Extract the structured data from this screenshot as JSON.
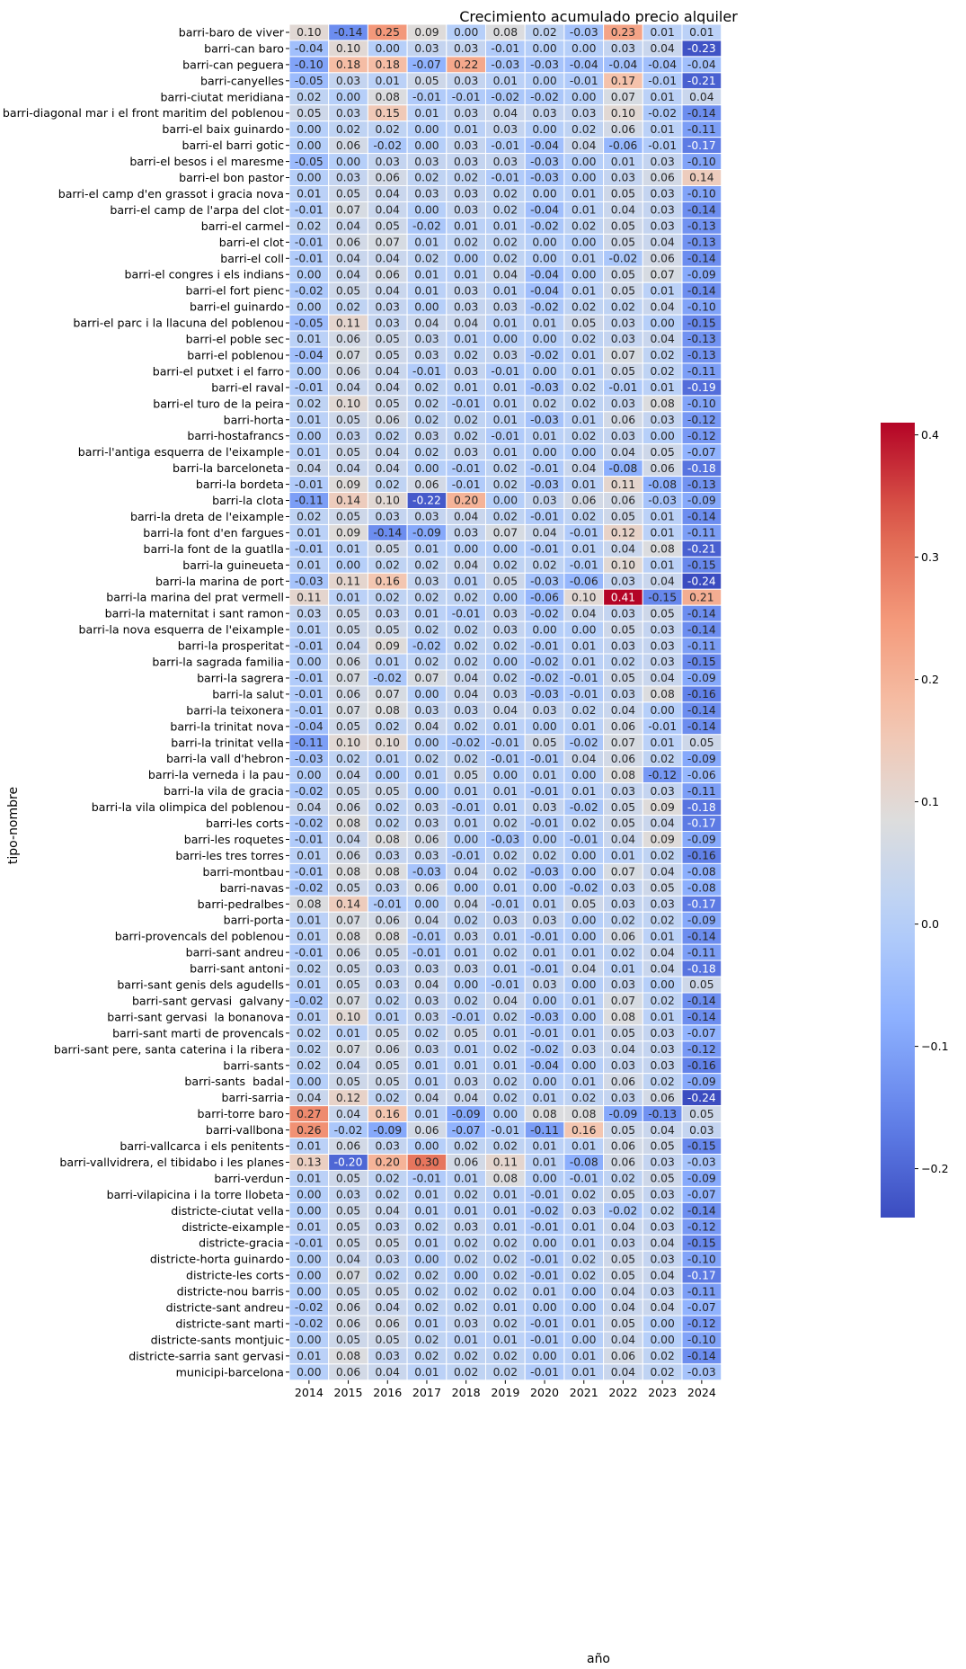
{
  "chart_data": {
    "type": "heatmap",
    "title": "Crecimiento acumulado precio alquiler",
    "xlabel": "año",
    "ylabel": "tipo-nombre",
    "colormap": "coolwarm",
    "vmin": -0.24,
    "vmax": 0.41,
    "colorbar_ticks": [
      -0.2,
      -0.1,
      0.0,
      0.1,
      0.2,
      0.3,
      0.4
    ],
    "colorbar_labels": [
      "−0.2",
      "−0.1",
      "0.0",
      "0.1",
      "0.2",
      "0.3",
      "0.4"
    ],
    "x": [
      "2014",
      "2015",
      "2016",
      "2017",
      "2018",
      "2019",
      "2020",
      "2021",
      "2022",
      "2023",
      "2024"
    ],
    "y": [
      "barri-baro de viver",
      "barri-can baro",
      "barri-can peguera",
      "barri-canyelles",
      "barri-ciutat meridiana",
      "barri-diagonal mar i el front maritim del poblenou",
      "barri-el baix guinardo",
      "barri-el barri gotic",
      "barri-el besos i el maresme",
      "barri-el bon pastor",
      "barri-el camp d'en grassot i gracia nova",
      "barri-el camp de l'arpa del clot",
      "barri-el carmel",
      "barri-el clot",
      "barri-el coll",
      "barri-el congres i els indians",
      "barri-el fort pienc",
      "barri-el guinardo",
      "barri-el parc i la llacuna del poblenou",
      "barri-el poble sec",
      "barri-el poblenou",
      "barri-el putxet i el farro",
      "barri-el raval",
      "barri-el turo de la peira",
      "barri-horta",
      "barri-hostafrancs",
      "barri-l'antiga esquerra de l'eixample",
      "barri-la barceloneta",
      "barri-la bordeta",
      "barri-la clota",
      "barri-la dreta de l'eixample",
      "barri-la font d'en fargues",
      "barri-la font de la guatlla",
      "barri-la guineueta",
      "barri-la marina de port",
      "barri-la marina del prat vermell",
      "barri-la maternitat i sant ramon",
      "barri-la nova esquerra de l'eixample",
      "barri-la prosperitat",
      "barri-la sagrada familia",
      "barri-la sagrera",
      "barri-la salut",
      "barri-la teixonera",
      "barri-la trinitat nova",
      "barri-la trinitat vella",
      "barri-la vall d'hebron",
      "barri-la verneda i la pau",
      "barri-la vila de gracia",
      "barri-la vila olimpica del poblenou",
      "barri-les corts",
      "barri-les roquetes",
      "barri-les tres torres",
      "barri-montbau",
      "barri-navas",
      "barri-pedralbes",
      "barri-porta",
      "barri-provencals del poblenou",
      "barri-sant andreu",
      "barri-sant antoni",
      "barri-sant genis dels agudells",
      "barri-sant gervasi  galvany",
      "barri-sant gervasi  la bonanova",
      "barri-sant marti de provencals",
      "barri-sant pere, santa caterina i la ribera",
      "barri-sants",
      "barri-sants  badal",
      "barri-sarria",
      "barri-torre baro",
      "barri-vallbona",
      "barri-vallcarca i els penitents",
      "barri-vallvidrera, el tibidabo i les planes",
      "barri-verdun",
      "barri-vilapicina i la torre llobeta",
      "districte-ciutat vella",
      "districte-eixample",
      "districte-gracia",
      "districte-horta guinardo",
      "districte-les corts",
      "districte-nou barris",
      "districte-sant andreu",
      "districte-sant marti",
      "districte-sants montjuic",
      "districte-sarria sant gervasi",
      "municipi-barcelona"
    ],
    "values": [
      [
        0.1,
        -0.14,
        0.25,
        0.09,
        -0.0,
        0.08,
        0.02,
        -0.03,
        0.23,
        0.01,
        0.01
      ],
      [
        -0.04,
        0.1,
        0.0,
        0.03,
        0.03,
        -0.01,
        -0.0,
        -0.0,
        0.03,
        0.04,
        -0.23
      ],
      [
        -0.1,
        0.18,
        0.18,
        -0.07,
        0.22,
        -0.03,
        -0.03,
        -0.04,
        -0.04,
        -0.04,
        -0.04
      ],
      [
        -0.05,
        0.03,
        0.01,
        0.05,
        0.03,
        0.01,
        -0.0,
        -0.01,
        0.17,
        -0.01,
        -0.21
      ],
      [
        0.02,
        0.0,
        0.08,
        -0.01,
        -0.01,
        -0.02,
        -0.02,
        -0.0,
        0.07,
        0.01,
        0.04
      ],
      [
        0.05,
        0.03,
        0.15,
        0.01,
        0.03,
        0.04,
        0.03,
        0.03,
        0.1,
        -0.02,
        -0.14
      ],
      [
        0.0,
        0.02,
        0.02,
        -0.0,
        0.01,
        0.03,
        -0.0,
        0.02,
        0.06,
        0.01,
        -0.11
      ],
      [
        -0.0,
        0.06,
        -0.02,
        -0.0,
        0.03,
        -0.01,
        -0.04,
        0.04,
        -0.06,
        -0.01,
        -0.17
      ],
      [
        -0.05,
        0.0,
        0.03,
        0.03,
        0.03,
        0.03,
        -0.03,
        0.0,
        0.01,
        0.03,
        -0.1
      ],
      [
        0.0,
        0.03,
        0.06,
        0.02,
        0.02,
        -0.01,
        -0.03,
        -0.0,
        0.03,
        0.06,
        0.14
      ],
      [
        0.01,
        0.05,
        0.04,
        0.03,
        0.03,
        0.02,
        0.0,
        0.01,
        0.05,
        0.03,
        -0.1
      ],
      [
        -0.01,
        0.07,
        0.04,
        0.0,
        0.03,
        0.02,
        -0.04,
        0.01,
        0.04,
        0.03,
        -0.14
      ],
      [
        0.02,
        0.04,
        0.05,
        -0.02,
        0.01,
        0.01,
        -0.02,
        0.02,
        0.05,
        0.03,
        -0.13
      ],
      [
        -0.01,
        0.06,
        0.07,
        0.01,
        0.02,
        0.02,
        -0.0,
        -0.0,
        0.05,
        0.04,
        -0.13
      ],
      [
        -0.01,
        0.04,
        0.04,
        0.02,
        -0.0,
        0.02,
        -0.0,
        0.01,
        -0.02,
        0.06,
        -0.14
      ],
      [
        0.0,
        0.04,
        0.06,
        0.01,
        0.01,
        0.04,
        -0.04,
        0.0,
        0.05,
        0.07,
        -0.09
      ],
      [
        -0.02,
        0.05,
        0.04,
        0.01,
        0.03,
        0.01,
        -0.04,
        0.01,
        0.05,
        0.01,
        -0.14
      ],
      [
        -0.0,
        0.02,
        0.03,
        -0.0,
        0.03,
        0.03,
        -0.02,
        0.02,
        0.02,
        0.04,
        -0.1
      ],
      [
        -0.05,
        0.11,
        0.03,
        0.04,
        0.04,
        0.01,
        0.01,
        0.05,
        0.03,
        0.0,
        -0.15
      ],
      [
        0.01,
        0.06,
        0.05,
        0.03,
        0.01,
        0.0,
        -0.0,
        0.02,
        0.03,
        0.04,
        -0.13
      ],
      [
        -0.04,
        0.07,
        0.05,
        0.03,
        0.02,
        0.03,
        -0.02,
        0.01,
        0.07,
        0.02,
        -0.13
      ],
      [
        0.0,
        0.06,
        0.04,
        -0.01,
        0.03,
        -0.01,
        0.0,
        0.01,
        0.05,
        0.02,
        -0.11
      ],
      [
        -0.01,
        0.04,
        0.04,
        0.02,
        0.01,
        0.01,
        -0.03,
        0.02,
        -0.01,
        0.01,
        -0.19
      ],
      [
        0.02,
        0.1,
        0.05,
        0.02,
        -0.01,
        0.01,
        0.02,
        0.02,
        0.03,
        0.08,
        -0.1
      ],
      [
        0.01,
        0.05,
        0.06,
        0.02,
        0.02,
        0.01,
        -0.03,
        0.01,
        0.06,
        0.03,
        -0.12
      ],
      [
        -0.0,
        0.03,
        0.02,
        0.03,
        0.02,
        -0.01,
        0.01,
        0.02,
        0.03,
        0.0,
        -0.12
      ],
      [
        0.01,
        0.05,
        0.04,
        0.02,
        0.03,
        0.01,
        -0.0,
        0.0,
        0.04,
        0.05,
        -0.07
      ],
      [
        0.04,
        0.04,
        0.04,
        0.0,
        -0.01,
        0.02,
        -0.01,
        0.04,
        -0.08,
        0.06,
        -0.18
      ],
      [
        -0.01,
        0.09,
        0.02,
        0.06,
        -0.01,
        0.02,
        -0.03,
        0.01,
        0.11,
        -0.08,
        -0.13
      ],
      [
        -0.11,
        0.14,
        0.1,
        -0.22,
        0.2,
        -0.0,
        0.03,
        0.06,
        0.06,
        -0.03,
        -0.09
      ],
      [
        0.02,
        0.05,
        0.03,
        0.03,
        0.04,
        0.02,
        -0.01,
        0.02,
        0.05,
        0.01,
        -0.14
      ],
      [
        0.01,
        0.09,
        -0.14,
        -0.09,
        0.03,
        0.07,
        0.04,
        -0.01,
        0.12,
        0.01,
        -0.11
      ],
      [
        -0.01,
        0.01,
        0.05,
        0.01,
        0.0,
        -0.0,
        -0.01,
        0.01,
        0.04,
        0.08,
        -0.21
      ],
      [
        0.01,
        -0.0,
        0.02,
        0.02,
        0.04,
        0.02,
        0.02,
        -0.01,
        0.1,
        0.01,
        -0.15
      ],
      [
        -0.03,
        0.11,
        0.16,
        0.03,
        0.01,
        0.05,
        -0.03,
        -0.06,
        0.03,
        0.04,
        -0.24
      ],
      [
        0.11,
        0.01,
        0.02,
        0.02,
        0.02,
        -0.0,
        -0.06,
        0.1,
        0.41,
        -0.15,
        0.21
      ],
      [
        0.03,
        0.05,
        0.03,
        0.01,
        -0.01,
        0.03,
        -0.02,
        0.04,
        0.03,
        0.05,
        -0.14
      ],
      [
        0.01,
        0.05,
        0.05,
        0.02,
        0.02,
        0.03,
        -0.0,
        -0.0,
        0.05,
        0.03,
        -0.14
      ],
      [
        -0.01,
        0.04,
        0.09,
        -0.02,
        0.02,
        0.02,
        -0.01,
        0.01,
        0.03,
        0.03,
        -0.11
      ],
      [
        -0.0,
        0.06,
        0.01,
        0.02,
        0.02,
        0.0,
        -0.02,
        0.01,
        0.02,
        0.03,
        -0.15
      ],
      [
        -0.01,
        0.07,
        -0.02,
        0.07,
        0.04,
        0.02,
        -0.02,
        -0.01,
        0.05,
        0.04,
        -0.09
      ],
      [
        -0.01,
        0.06,
        0.07,
        0.0,
        0.04,
        0.03,
        -0.03,
        -0.01,
        0.03,
        0.08,
        -0.16
      ],
      [
        -0.01,
        0.07,
        0.08,
        0.03,
        0.03,
        0.04,
        0.03,
        0.02,
        0.04,
        -0.0,
        -0.14
      ],
      [
        -0.04,
        0.05,
        0.02,
        0.04,
        0.02,
        0.01,
        0.0,
        0.01,
        0.06,
        -0.01,
        -0.14
      ],
      [
        -0.11,
        0.1,
        0.1,
        -0.0,
        -0.02,
        -0.01,
        0.05,
        -0.02,
        0.07,
        0.01,
        0.05
      ],
      [
        -0.03,
        0.02,
        0.01,
        0.02,
        0.02,
        -0.01,
        -0.01,
        0.04,
        0.06,
        0.02,
        -0.09
      ],
      [
        0.0,
        0.04,
        0.0,
        0.01,
        0.05,
        0.0,
        0.01,
        -0.0,
        0.08,
        -0.12,
        -0.06
      ],
      [
        -0.02,
        0.05,
        0.05,
        0.0,
        0.01,
        0.01,
        -0.01,
        0.01,
        0.03,
        0.03,
        -0.11
      ],
      [
        0.04,
        0.06,
        0.02,
        0.03,
        -0.01,
        0.01,
        0.03,
        -0.02,
        0.05,
        0.09,
        -0.18
      ],
      [
        -0.02,
        0.08,
        0.02,
        0.03,
        0.01,
        0.02,
        -0.01,
        0.02,
        0.05,
        0.04,
        -0.17
      ],
      [
        -0.01,
        0.04,
        0.08,
        0.06,
        0.0,
        -0.03,
        0.0,
        -0.01,
        0.04,
        0.09,
        -0.09
      ],
      [
        0.01,
        0.06,
        0.03,
        0.03,
        -0.01,
        0.02,
        0.02,
        -0.0,
        0.01,
        0.02,
        -0.16
      ],
      [
        -0.01,
        0.08,
        0.08,
        -0.03,
        0.04,
        0.02,
        -0.03,
        0.0,
        0.07,
        0.04,
        -0.08
      ],
      [
        -0.02,
        0.05,
        0.03,
        0.06,
        -0.0,
        0.01,
        -0.0,
        -0.02,
        0.03,
        0.05,
        -0.08
      ],
      [
        0.08,
        0.14,
        -0.01,
        -0.0,
        0.04,
        -0.01,
        0.01,
        0.05,
        0.03,
        0.03,
        -0.17
      ],
      [
        0.01,
        0.07,
        0.06,
        0.04,
        0.02,
        0.03,
        0.03,
        0.0,
        0.02,
        0.02,
        -0.09
      ],
      [
        0.01,
        0.08,
        0.08,
        -0.01,
        0.03,
        0.01,
        -0.01,
        0.0,
        0.06,
        0.01,
        -0.14
      ],
      [
        -0.01,
        0.06,
        0.05,
        -0.01,
        0.01,
        0.02,
        0.01,
        0.01,
        0.02,
        0.04,
        -0.11
      ],
      [
        0.02,
        0.05,
        0.03,
        0.03,
        0.03,
        0.01,
        -0.01,
        0.04,
        0.01,
        0.04,
        -0.18
      ],
      [
        0.01,
        0.05,
        0.03,
        0.04,
        0.0,
        -0.01,
        0.03,
        -0.0,
        0.03,
        -0.0,
        0.05
      ],
      [
        -0.02,
        0.07,
        0.02,
        0.03,
        0.02,
        0.04,
        -0.0,
        0.01,
        0.07,
        0.02,
        -0.14
      ],
      [
        0.01,
        0.1,
        0.01,
        0.03,
        -0.01,
        0.02,
        -0.03,
        -0.0,
        0.08,
        0.01,
        -0.14
      ],
      [
        0.02,
        0.01,
        0.05,
        0.02,
        0.05,
        0.01,
        -0.01,
        0.01,
        0.05,
        0.03,
        -0.07
      ],
      [
        0.02,
        0.07,
        0.06,
        0.03,
        0.01,
        0.02,
        -0.02,
        0.03,
        0.04,
        0.03,
        -0.12
      ],
      [
        0.02,
        0.04,
        0.05,
        0.01,
        0.01,
        0.01,
        -0.04,
        0.0,
        0.03,
        0.03,
        -0.16
      ],
      [
        0.0,
        0.05,
        0.05,
        0.01,
        0.03,
        0.02,
        0.0,
        0.01,
        0.06,
        0.02,
        -0.09
      ],
      [
        0.04,
        0.12,
        0.02,
        0.04,
        0.04,
        0.02,
        0.01,
        0.02,
        0.03,
        0.06,
        -0.24
      ],
      [
        0.27,
        0.04,
        0.16,
        0.01,
        -0.09,
        -0.0,
        0.08,
        0.08,
        -0.09,
        -0.13,
        0.05
      ],
      [
        0.26,
        -0.02,
        -0.09,
        0.06,
        -0.07,
        -0.01,
        -0.11,
        0.16,
        0.05,
        0.04,
        0.03
      ],
      [
        0.01,
        0.06,
        0.03,
        -0.0,
        0.02,
        0.02,
        0.01,
        0.01,
        0.06,
        0.05,
        -0.15
      ],
      [
        0.13,
        -0.2,
        0.2,
        0.3,
        0.06,
        0.11,
        0.01,
        -0.08,
        0.06,
        0.03,
        -0.03
      ],
      [
        0.01,
        0.05,
        0.02,
        -0.01,
        0.01,
        0.08,
        -0.0,
        -0.01,
        0.02,
        0.05,
        -0.09
      ],
      [
        0.0,
        0.03,
        0.02,
        0.01,
        0.02,
        0.01,
        -0.01,
        0.02,
        0.05,
        0.03,
        -0.07
      ],
      [
        0.0,
        0.05,
        0.04,
        0.01,
        0.01,
        0.01,
        -0.02,
        0.03,
        -0.02,
        0.02,
        -0.14
      ],
      [
        0.01,
        0.05,
        0.03,
        0.02,
        0.03,
        0.01,
        -0.01,
        0.01,
        0.04,
        0.03,
        -0.12
      ],
      [
        -0.01,
        0.05,
        0.05,
        0.01,
        0.02,
        0.02,
        -0.0,
        0.01,
        0.03,
        0.04,
        -0.15
      ],
      [
        0.0,
        0.04,
        0.03,
        0.0,
        0.02,
        0.02,
        -0.01,
        0.02,
        0.05,
        0.03,
        -0.1
      ],
      [
        0.0,
        0.07,
        0.02,
        0.02,
        0.0,
        0.02,
        -0.01,
        0.02,
        0.05,
        0.04,
        -0.17
      ],
      [
        0.0,
        0.05,
        0.05,
        0.02,
        0.02,
        0.02,
        0.01,
        0.0,
        0.04,
        0.03,
        -0.11
      ],
      [
        -0.02,
        0.06,
        0.04,
        0.02,
        0.02,
        0.01,
        -0.0,
        -0.0,
        0.04,
        0.04,
        -0.07
      ],
      [
        -0.02,
        0.06,
        0.06,
        0.01,
        0.03,
        0.02,
        -0.01,
        0.01,
        0.05,
        -0.0,
        -0.12
      ],
      [
        0.0,
        0.05,
        0.05,
        0.02,
        0.01,
        0.01,
        -0.01,
        0.0,
        0.04,
        0.0,
        -0.1
      ],
      [
        0.01,
        0.08,
        0.03,
        0.02,
        0.02,
        0.02,
        -0.0,
        0.01,
        0.06,
        0.02,
        -0.14
      ],
      [
        0.0,
        0.06,
        0.04,
        0.01,
        0.02,
        0.02,
        -0.01,
        0.01,
        0.04,
        0.02,
        -0.03
      ]
    ]
  }
}
